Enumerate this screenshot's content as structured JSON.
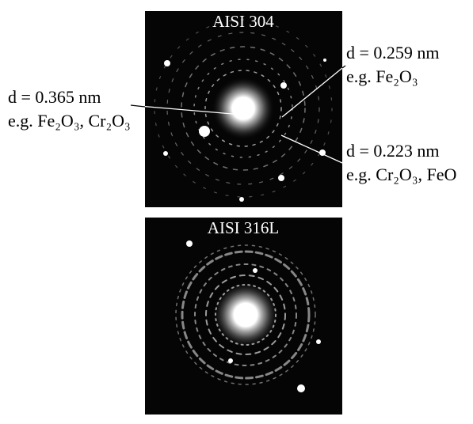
{
  "panels": [
    {
      "title": "AISI 304",
      "annotations": [
        {
          "d": "d = 0.365 nm",
          "example": "e.g. Fe₂O₃, Cr₂O₃"
        },
        {
          "d": "d = 0.259 nm",
          "example": "e.g. Fe₂O₃"
        },
        {
          "d": "d = 0.223 nm",
          "example": "e.g. Cr₂O₃, FeO"
        }
      ]
    },
    {
      "title": "AISI 316L"
    }
  ]
}
